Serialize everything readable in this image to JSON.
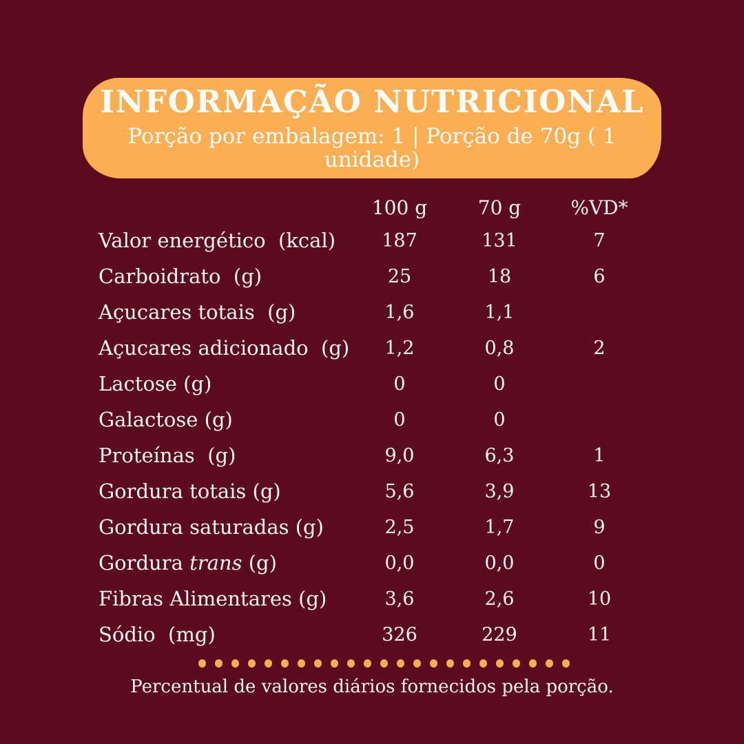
{
  "page": {
    "background_color": "#5C0B1F",
    "banner_color": "#FBAE52",
    "text_color": "#FBF6F0",
    "dot_color": "#F9B055"
  },
  "header": {
    "title": "INFORMAÇÃO NUTRICIONAL",
    "subtitle": "Porção por embalagem: 1 | Porção de 70g ( 1 unidade)"
  },
  "table": {
    "columns": [
      "100 g",
      "70 g",
      "%VD*"
    ],
    "rows": [
      {
        "label": "Valor energético  (kcal)",
        "italic": "",
        "suffix": "",
        "v100": "187",
        "v70": "131",
        "vd": "7"
      },
      {
        "label": "Carboidrato  (g)",
        "italic": "",
        "suffix": "",
        "v100": "25",
        "v70": "18",
        "vd": "6"
      },
      {
        "label": "Açucares totais  (g)",
        "italic": "",
        "suffix": "",
        "v100": "1,6",
        "v70": "1,1",
        "vd": ""
      },
      {
        "label": "Açucares adicionado  (g)",
        "italic": "",
        "suffix": "",
        "v100": "1,2",
        "v70": "0,8",
        "vd": "2"
      },
      {
        "label": "Lactose (g)",
        "italic": "",
        "suffix": "",
        "v100": "0",
        "v70": "0",
        "vd": ""
      },
      {
        "label": "Galactose (g)",
        "italic": "",
        "suffix": "",
        "v100": "0",
        "v70": "0",
        "vd": ""
      },
      {
        "label": "Proteínas  (g)",
        "italic": "",
        "suffix": "",
        "v100": "9,0",
        "v70": "6,3",
        "vd": "1"
      },
      {
        "label": "Gordura totais (g)",
        "italic": "",
        "suffix": "",
        "v100": "5,6",
        "v70": "3,9",
        "vd": "13"
      },
      {
        "label": "Gordura saturadas (g)",
        "italic": "",
        "suffix": "",
        "v100": "2,5",
        "v70": "1,7",
        "vd": "9"
      },
      {
        "label": "Gordura ",
        "italic": "trans",
        "suffix": " (g)",
        "v100": "0,0",
        "v70": "0,0",
        "vd": "0"
      },
      {
        "label": "Fibras Alimentares (g)",
        "italic": "",
        "suffix": "",
        "v100": "3,6",
        "v70": "2,6",
        "vd": "10"
      },
      {
        "label": "Sódio  (mg)",
        "italic": "",
        "suffix": "",
        "v100": "326",
        "v70": "229",
        "vd": "11"
      }
    ]
  },
  "divider": {
    "dot_count": 23
  },
  "footer": {
    "note": "Percentual de valores diários fornecidos pela porção."
  }
}
